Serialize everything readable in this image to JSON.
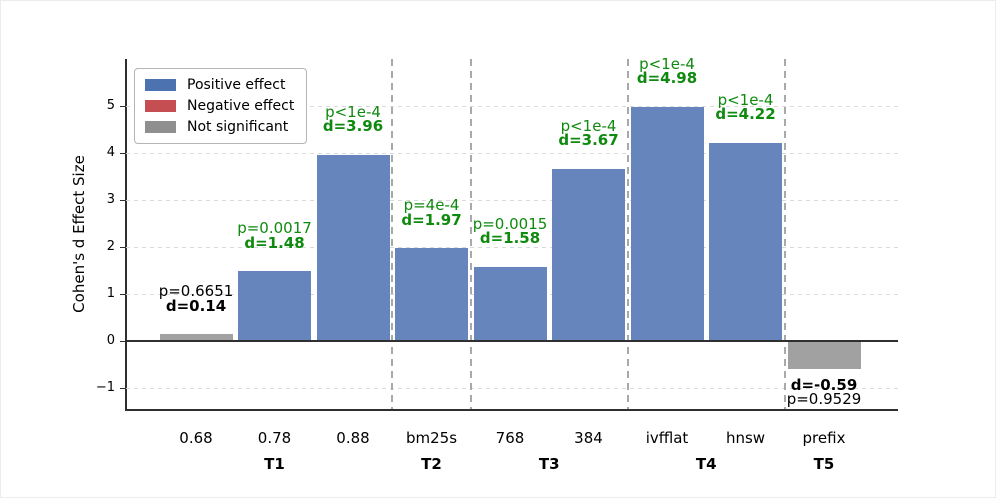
{
  "colors": {
    "bar_positive": "#6585bc",
    "bar_neutral": "#a1a1a1",
    "legend_positive": "#4c72b0",
    "legend_negative": "#c44e52",
    "legend_neutral": "#8f8f8f",
    "annotation_significant": "#0e8a0e",
    "annotation_not_significant": "#000000",
    "grid": "#d9d9d9",
    "separator": "#a9a9a9",
    "axis": "#2f2f2f"
  },
  "chart_data": {
    "type": "bar",
    "title": "",
    "xlabel": "",
    "ylabel": "Cohen's d Effect Size",
    "ylim": [
      -1.45,
      6.0
    ],
    "grid": true,
    "legend_position": "upper left",
    "legend": [
      {
        "label": "Positive effect",
        "color_key": "legend_positive"
      },
      {
        "label": "Negative effect",
        "color_key": "legend_negative"
      },
      {
        "label": "Not significant",
        "color_key": "legend_neutral"
      }
    ],
    "yticks": [
      {
        "value": 5,
        "label": "5"
      },
      {
        "value": 4,
        "label": "4"
      },
      {
        "value": 3,
        "label": "3"
      },
      {
        "value": 2,
        "label": "2"
      },
      {
        "value": 1,
        "label": "1"
      },
      {
        "value": 0,
        "label": "0"
      },
      {
        "value": -1,
        "label": "−1"
      }
    ],
    "groups": [
      {
        "label": "T1",
        "bars": [
          {
            "category": "0.68",
            "d": 0.14,
            "d_label": "d=0.14",
            "p_label": "p=0.6651",
            "significant": false,
            "effect": "none"
          },
          {
            "category": "0.78",
            "d": 1.48,
            "d_label": "d=1.48",
            "p_label": "p=0.0017",
            "significant": true,
            "effect": "positive"
          },
          {
            "category": "0.88",
            "d": 3.96,
            "d_label": "d=3.96",
            "p_label": "p<1e-4",
            "significant": true,
            "effect": "positive"
          }
        ]
      },
      {
        "label": "T2",
        "bars": [
          {
            "category": "bm25s",
            "d": 1.97,
            "d_label": "d=1.97",
            "p_label": "p=4e-4",
            "significant": true,
            "effect": "positive"
          }
        ]
      },
      {
        "label": "T3",
        "bars": [
          {
            "category": "768",
            "d": 1.58,
            "d_label": "d=1.58",
            "p_label": "p=0.0015",
            "significant": true,
            "effect": "positive"
          },
          {
            "category": "384",
            "d": 3.67,
            "d_label": "d=3.67",
            "p_label": "p<1e-4",
            "significant": true,
            "effect": "positive"
          }
        ]
      },
      {
        "label": "T4",
        "bars": [
          {
            "category": "ivfflat",
            "d": 4.98,
            "d_label": "d=4.98",
            "p_label": "p<1e-4",
            "significant": true,
            "effect": "positive"
          },
          {
            "category": "hnsw",
            "d": 4.22,
            "d_label": "d=4.22",
            "p_label": "p<1e-4",
            "significant": true,
            "effect": "positive"
          }
        ]
      },
      {
        "label": "T5",
        "bars": [
          {
            "category": "prefix",
            "d": -0.59,
            "d_label": "d=-0.59",
            "p_label": "p=0.9529",
            "significant": false,
            "effect": "none"
          }
        ]
      }
    ]
  }
}
